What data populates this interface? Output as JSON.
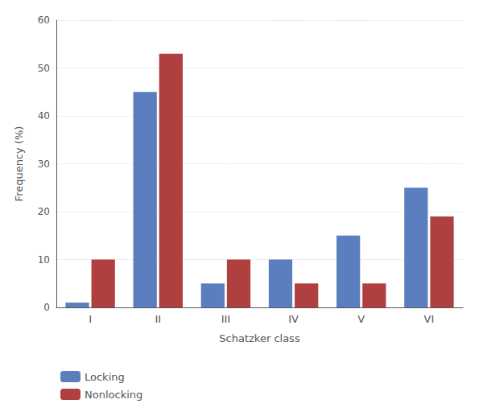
{
  "chart_data": {
    "type": "bar",
    "categories": [
      "I",
      "II",
      "III",
      "IV",
      "V",
      "VI"
    ],
    "series": [
      {
        "name": "Locking",
        "color": "#5b7fbe",
        "values": [
          1,
          45,
          5,
          10,
          15,
          25
        ]
      },
      {
        "name": "Nonlocking",
        "color": "#b04040",
        "values": [
          10,
          53,
          10,
          5,
          5,
          19
        ]
      }
    ],
    "xlabel": "Schatzker class",
    "ylabel": "Frequency (%)",
    "ylim": [
      0,
      60
    ],
    "yticks": [
      0,
      10,
      20,
      30,
      40,
      50,
      60
    ],
    "grid": true,
    "legend": "bottom"
  }
}
